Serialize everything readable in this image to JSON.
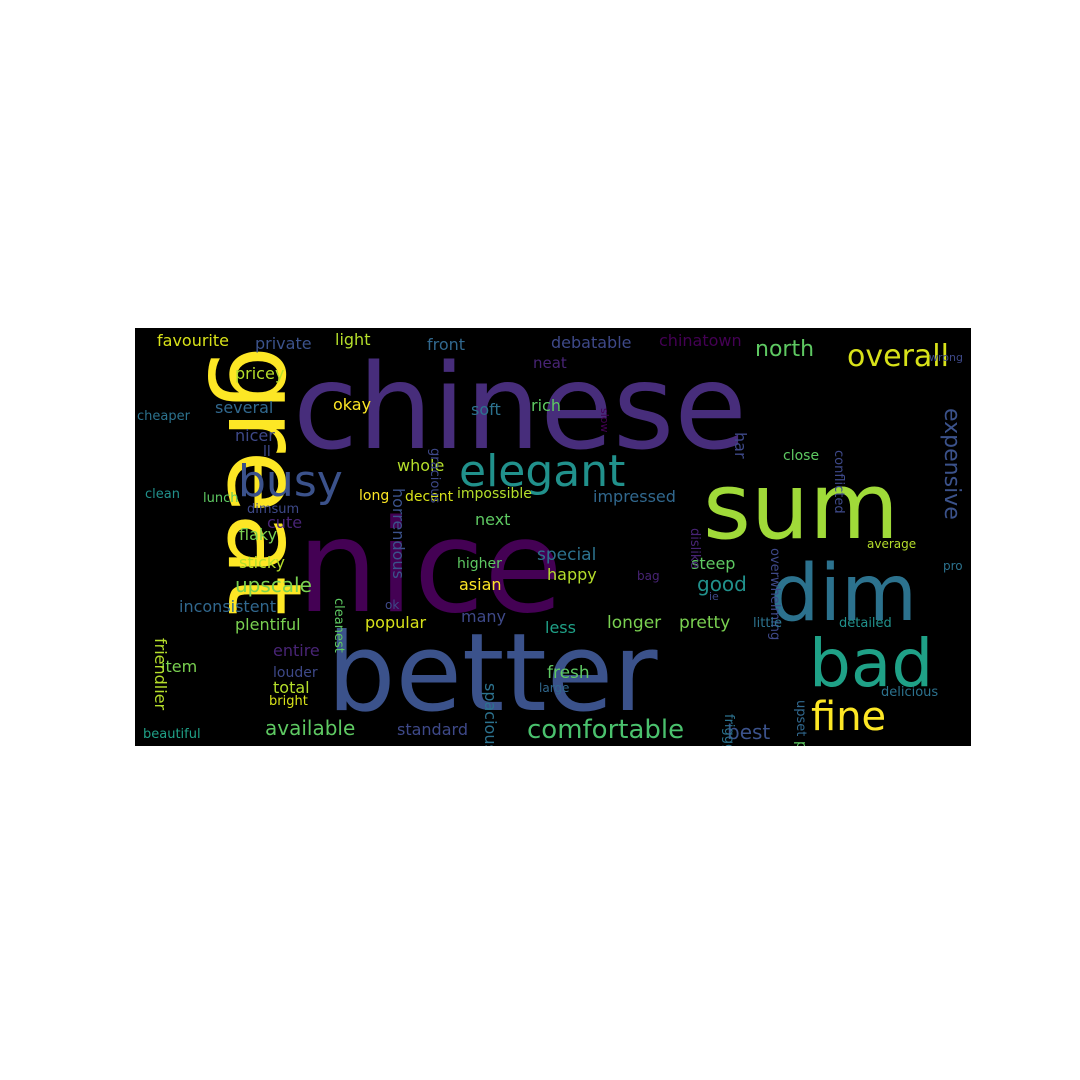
{
  "figure": {
    "background": "#000000",
    "palette": [
      "#440154",
      "#3b528b",
      "#21918c",
      "#5ec962",
      "#fde725"
    ]
  },
  "words": [
    {
      "text": "chinese",
      "color": "#472d7b",
      "vertical": false
    },
    {
      "text": "nice",
      "color": "#440154",
      "vertical": false
    },
    {
      "text": "better",
      "color": "#3b528b",
      "vertical": false
    },
    {
      "text": "great",
      "color": "#fde725",
      "vertical": true
    },
    {
      "text": "sum",
      "color": "#a0da39",
      "vertical": false
    },
    {
      "text": "dim",
      "color": "#2c728e",
      "vertical": false
    },
    {
      "text": "bad",
      "color": "#1fa187",
      "vertical": false
    },
    {
      "text": "busy",
      "color": "#3b528b",
      "vertical": false
    },
    {
      "text": "elegant",
      "color": "#21918c",
      "vertical": false
    },
    {
      "text": "fine",
      "color": "#fde725",
      "vertical": false
    },
    {
      "text": "overall",
      "color": "#d8e219",
      "vertical": false
    },
    {
      "text": "comfortable",
      "color": "#4ac16d",
      "vertical": false
    },
    {
      "text": "expensive",
      "color": "#3b528b",
      "vertical": true
    },
    {
      "text": "north",
      "color": "#5ec962",
      "vertical": false
    },
    {
      "text": "upscale",
      "color": "#7ad151",
      "vertical": false
    },
    {
      "text": "available",
      "color": "#5ec962",
      "vertical": false
    },
    {
      "text": "best",
      "color": "#3b528b",
      "vertical": false
    },
    {
      "text": "good",
      "color": "#21918c",
      "vertical": false
    },
    {
      "text": "favourite",
      "color": "#d8e219",
      "vertical": false
    },
    {
      "text": "private",
      "color": "#3b528b",
      "vertical": false
    },
    {
      "text": "light",
      "color": "#b5de2b",
      "vertical": false
    },
    {
      "text": "front",
      "color": "#31688e",
      "vertical": false
    },
    {
      "text": "debatable",
      "color": "#3e4989",
      "vertical": false
    },
    {
      "text": "chinatown",
      "color": "#440154",
      "vertical": false
    },
    {
      "text": "neat",
      "color": "#482475",
      "vertical": false
    },
    {
      "text": "pricey",
      "color": "#b5de2b",
      "vertical": false
    },
    {
      "text": "okay",
      "color": "#fde725",
      "vertical": false
    },
    {
      "text": "soft",
      "color": "#2c728e",
      "vertical": false
    },
    {
      "text": "rich",
      "color": "#5ec962",
      "vertical": false
    },
    {
      "text": "several",
      "color": "#31688e",
      "vertical": false
    },
    {
      "text": "har",
      "color": "#3e4989",
      "vertical": true
    },
    {
      "text": "nicer",
      "color": "#3e4989",
      "vertical": false
    },
    {
      "text": "ll",
      "color": "#3e4989",
      "vertical": false
    },
    {
      "text": "whole",
      "color": "#b5de2b",
      "vertical": false
    },
    {
      "text": "impressed",
      "color": "#31688e",
      "vertical": false
    },
    {
      "text": "cute",
      "color": "#482475",
      "vertical": false
    },
    {
      "text": "flaky",
      "color": "#7ad151",
      "vertical": false
    },
    {
      "text": "long",
      "color": "#fde725",
      "vertical": false
    },
    {
      "text": "decent",
      "color": "#d8e219",
      "vertical": false
    },
    {
      "text": "impossible",
      "color": "#b5de2b",
      "vertical": false
    },
    {
      "text": "next",
      "color": "#5ec962",
      "vertical": false
    },
    {
      "text": "horrendous",
      "color": "#3b528b",
      "vertical": true
    },
    {
      "text": "sticky",
      "color": "#b5de2b",
      "vertical": false
    },
    {
      "text": "special",
      "color": "#2c728e",
      "vertical": false
    },
    {
      "text": "steep",
      "color": "#5ec962",
      "vertical": false
    },
    {
      "text": "happy",
      "color": "#b5de2b",
      "vertical": false
    },
    {
      "text": "asian",
      "color": "#fde725",
      "vertical": false
    },
    {
      "text": "higher",
      "color": "#5ec962",
      "vertical": false
    },
    {
      "text": "inconsistent",
      "color": "#31688e",
      "vertical": false
    },
    {
      "text": "plentiful",
      "color": "#7ad151",
      "vertical": false
    },
    {
      "text": "popular",
      "color": "#d8e219",
      "vertical": false
    },
    {
      "text": "many",
      "color": "#3e4989",
      "vertical": false
    },
    {
      "text": "less",
      "color": "#1fa187",
      "vertical": false
    },
    {
      "text": "longer",
      "color": "#7ad151",
      "vertical": false
    },
    {
      "text": "pretty",
      "color": "#7ad151",
      "vertical": false
    },
    {
      "text": "item",
      "color": "#7ad151",
      "vertical": false
    },
    {
      "text": "entire",
      "color": "#482475",
      "vertical": false
    },
    {
      "text": "total",
      "color": "#b5de2b",
      "vertical": false
    },
    {
      "text": "fresh",
      "color": "#5ec962",
      "vertical": false
    },
    {
      "text": "standard",
      "color": "#3e4989",
      "vertical": false
    },
    {
      "text": "spacious",
      "color": "#2c728e",
      "vertical": true
    },
    {
      "text": "friendlier",
      "color": "#b5de2b",
      "vertical": true
    },
    {
      "text": "cleanest",
      "color": "#5ec962",
      "vertical": true
    },
    {
      "text": "gracious",
      "color": "#3e4989",
      "vertical": true
    },
    {
      "text": "slow",
      "color": "#440154",
      "vertical": true
    },
    {
      "text": "close",
      "color": "#5ec962",
      "vertical": false
    },
    {
      "text": "overwhelming",
      "color": "#3e4989",
      "vertical": true
    },
    {
      "text": "dislike",
      "color": "#482475",
      "vertical": true
    },
    {
      "text": "conflicted",
      "color": "#3e4989",
      "vertical": true
    },
    {
      "text": "wrong",
      "color": "#3e4989",
      "vertical": false
    },
    {
      "text": "cheaper",
      "color": "#2c728e",
      "vertical": false
    },
    {
      "text": "clean",
      "color": "#21918c",
      "vertical": false
    },
    {
      "text": "lunch",
      "color": "#5ec962",
      "vertical": false
    },
    {
      "text": "dimsum",
      "color": "#3e4989",
      "vertical": false
    },
    {
      "text": "bag",
      "color": "#482475",
      "vertical": false
    },
    {
      "text": "average",
      "color": "#b5de2b",
      "vertical": false
    },
    {
      "text": "pro",
      "color": "#2c728e",
      "vertical": false
    },
    {
      "text": "ok",
      "color": "#3e4989",
      "vertical": false
    },
    {
      "text": "large",
      "color": "#31688e",
      "vertical": false
    },
    {
      "text": "little",
      "color": "#2c728e",
      "vertical": false
    },
    {
      "text": "detailed",
      "color": "#21918c",
      "vertical": false
    },
    {
      "text": "louder",
      "color": "#3e4989",
      "vertical": false
    },
    {
      "text": "bright",
      "color": "#d8e219",
      "vertical": false
    },
    {
      "text": "frigggin",
      "color": "#2c728e",
      "vertical": true
    },
    {
      "text": "upset",
      "color": "#31688e",
      "vertical": true
    },
    {
      "text": "particular",
      "color": "#5ec962",
      "vertical": true
    },
    {
      "text": "delicious",
      "color": "#2c728e",
      "vertical": false
    },
    {
      "text": "beautiful",
      "color": "#1fa187",
      "vertical": false
    },
    {
      "text": "ie",
      "color": "#3e4989",
      "vertical": false
    }
  ]
}
